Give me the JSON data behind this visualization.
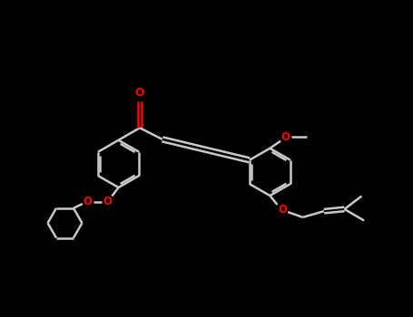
{
  "bg_color": "#000000",
  "line_color": "#c8c8c8",
  "oxygen_color": "#FF0000",
  "line_width": 1.8,
  "fig_width": 4.55,
  "fig_height": 3.5,
  "dpi": 100,
  "xlim": [
    0,
    10
  ],
  "ylim": [
    0,
    7.7
  ]
}
